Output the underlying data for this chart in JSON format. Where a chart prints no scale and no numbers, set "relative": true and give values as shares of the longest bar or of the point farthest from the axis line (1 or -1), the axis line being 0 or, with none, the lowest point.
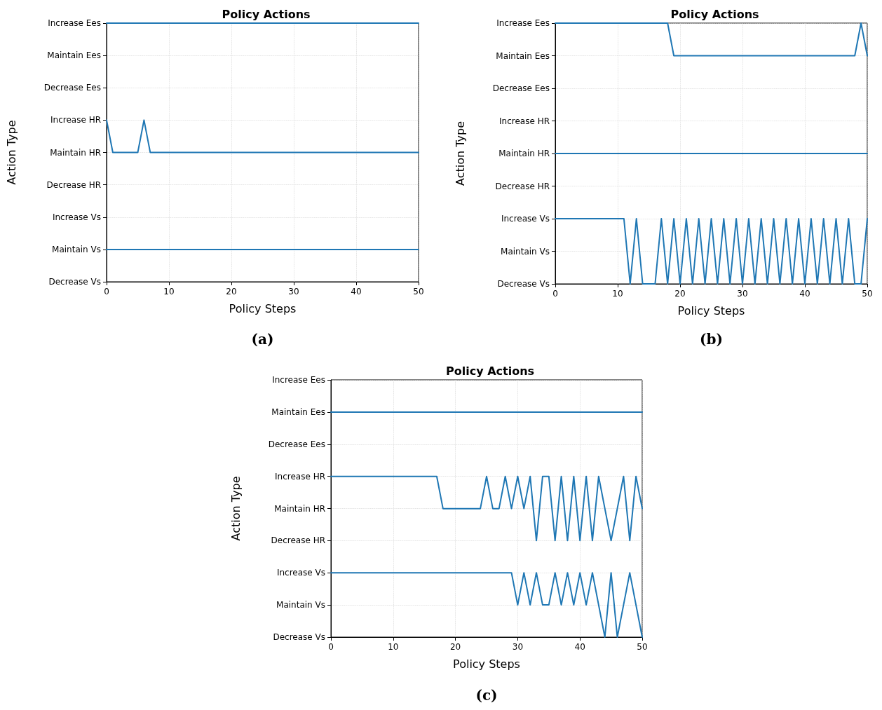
{
  "chart_data": [
    {
      "type": "line",
      "relative": true,
      "title": "Policy Actions",
      "xlabel": "Policy Steps",
      "ylabel": "Action Type",
      "annotations": [
        "(a)"
      ],
      "grid": true,
      "line_style": "solid",
      "marker": "none",
      "xlim": [
        0,
        50
      ],
      "xticks": [
        0,
        10,
        20,
        30,
        40,
        50
      ],
      "y_categories": [
        "Increase Ees",
        "Maintain Ees",
        "Decrease Ees",
        "Increase HR",
        "Maintain HR",
        "Decrease HR",
        "Increase Vs",
        "Maintain Vs",
        "Decrease Vs"
      ],
      "x": [
        0,
        1,
        2,
        3,
        4,
        5,
        6,
        7,
        8,
        9,
        10,
        11,
        12,
        13,
        14,
        15,
        16,
        17,
        18,
        19,
        20,
        21,
        22,
        23,
        24,
        25,
        26,
        27,
        28,
        29,
        30,
        31,
        32,
        33,
        34,
        35,
        36,
        37,
        38,
        39,
        40,
        41,
        42,
        43,
        44,
        45,
        46,
        47,
        48,
        49,
        50
      ],
      "series": [
        {
          "color": "#1f77b4",
          "values": [
            1,
            1,
            1,
            1,
            1,
            1,
            1,
            1,
            1,
            1,
            1,
            1,
            1,
            1,
            1,
            1,
            1,
            1,
            1,
            1,
            1,
            1,
            1,
            1,
            1,
            1,
            1,
            1,
            1,
            1,
            1,
            1,
            1,
            1,
            1,
            1,
            1,
            1,
            1,
            1,
            1,
            1,
            1,
            1,
            1,
            1,
            1,
            1,
            1,
            1,
            1
          ]
        },
        {
          "color": "#1f77b4",
          "values": [
            0.625,
            0.5,
            0.5,
            0.5,
            0.5,
            0.5,
            0.625,
            0.5,
            0.5,
            0.5,
            0.5,
            0.5,
            0.5,
            0.5,
            0.5,
            0.5,
            0.5,
            0.5,
            0.5,
            0.5,
            0.5,
            0.5,
            0.5,
            0.5,
            0.5,
            0.5,
            0.5,
            0.5,
            0.5,
            0.5,
            0.5,
            0.5,
            0.5,
            0.5,
            0.5,
            0.5,
            0.5,
            0.5,
            0.5,
            0.5,
            0.5,
            0.5,
            0.5,
            0.5,
            0.5,
            0.5,
            0.5,
            0.5,
            0.5,
            0.5,
            0.5
          ]
        },
        {
          "color": "#1f77b4",
          "values": [
            0.125,
            0.125,
            0.125,
            0.125,
            0.125,
            0.125,
            0.125,
            0.125,
            0.125,
            0.125,
            0.125,
            0.125,
            0.125,
            0.125,
            0.125,
            0.125,
            0.125,
            0.125,
            0.125,
            0.125,
            0.125,
            0.125,
            0.125,
            0.125,
            0.125,
            0.125,
            0.125,
            0.125,
            0.125,
            0.125,
            0.125,
            0.125,
            0.125,
            0.125,
            0.125,
            0.125,
            0.125,
            0.125,
            0.125,
            0.125,
            0.125,
            0.125,
            0.125,
            0.125,
            0.125,
            0.125,
            0.125,
            0.125,
            0.125,
            0.125,
            0.125
          ]
        }
      ]
    },
    {
      "type": "line",
      "relative": true,
      "title": "Policy Actions",
      "xlabel": "Policy Steps",
      "ylabel": "Action Type",
      "annotations": [
        "(b)"
      ],
      "grid": true,
      "line_style": "solid",
      "marker": "none",
      "xlim": [
        0,
        50
      ],
      "xticks": [
        0,
        10,
        20,
        30,
        40,
        50
      ],
      "y_categories": [
        "Increase Ees",
        "Maintain Ees",
        "Decrease Ees",
        "Increase HR",
        "Maintain HR",
        "Decrease HR",
        "Increase Vs",
        "Maintain Vs",
        "Decrease Vs"
      ],
      "x": [
        0,
        1,
        2,
        3,
        4,
        5,
        6,
        7,
        8,
        9,
        10,
        11,
        12,
        13,
        14,
        15,
        16,
        17,
        18,
        19,
        20,
        21,
        22,
        23,
        24,
        25,
        26,
        27,
        28,
        29,
        30,
        31,
        32,
        33,
        34,
        35,
        36,
        37,
        38,
        39,
        40,
        41,
        42,
        43,
        44,
        45,
        46,
        47,
        48,
        49,
        50
      ],
      "series": [
        {
          "color": "#1f77b4",
          "values": [
            1,
            1,
            1,
            1,
            1,
            1,
            1,
            1,
            1,
            1,
            1,
            1,
            1,
            1,
            1,
            1,
            1,
            1,
            1,
            0.875,
            0.875,
            0.875,
            0.875,
            0.875,
            0.875,
            0.875,
            0.875,
            0.875,
            0.875,
            0.875,
            0.875,
            0.875,
            0.875,
            0.875,
            0.875,
            0.875,
            0.875,
            0.875,
            0.875,
            0.875,
            0.875,
            0.875,
            0.875,
            0.875,
            0.875,
            0.875,
            0.875,
            0.875,
            0.875,
            1,
            0.875
          ]
        },
        {
          "color": "#1f77b4",
          "values": [
            0.5,
            0.5,
            0.5,
            0.5,
            0.5,
            0.5,
            0.5,
            0.5,
            0.5,
            0.5,
            0.5,
            0.5,
            0.5,
            0.5,
            0.5,
            0.5,
            0.5,
            0.5,
            0.5,
            0.5,
            0.5,
            0.5,
            0.5,
            0.5,
            0.5,
            0.5,
            0.5,
            0.5,
            0.5,
            0.5,
            0.5,
            0.5,
            0.5,
            0.5,
            0.5,
            0.5,
            0.5,
            0.5,
            0.5,
            0.5,
            0.5,
            0.5,
            0.5,
            0.5,
            0.5,
            0.5,
            0.5,
            0.5,
            0.5,
            0.5,
            0.5
          ]
        },
        {
          "color": "#1f77b4",
          "values": [
            0.25,
            0.25,
            0.25,
            0.25,
            0.25,
            0.25,
            0.25,
            0.25,
            0.25,
            0.25,
            0.25,
            0.25,
            0,
            0.25,
            0,
            0,
            0,
            0.25,
            0,
            0.25,
            0,
            0.25,
            0,
            0.25,
            0,
            0.25,
            0,
            0.25,
            0,
            0.25,
            0,
            0.25,
            0,
            0.25,
            0,
            0.25,
            0,
            0.25,
            0,
            0.25,
            0,
            0.25,
            0,
            0.25,
            0,
            0.25,
            0,
            0.25,
            0,
            0,
            0.25
          ]
        }
      ]
    },
    {
      "type": "line",
      "relative": true,
      "title": "Policy Actions",
      "xlabel": "Policy Steps",
      "ylabel": "Action Type",
      "annotations": [
        "(c)"
      ],
      "grid": true,
      "line_style": "solid",
      "marker": "none",
      "xlim": [
        0,
        50
      ],
      "xticks": [
        0,
        10,
        20,
        30,
        40,
        50
      ],
      "y_categories": [
        "Increase Ees",
        "Maintain Ees",
        "Decrease Ees",
        "Increase HR",
        "Maintain HR",
        "Decrease HR",
        "Increase Vs",
        "Maintain Vs",
        "Decrease Vs"
      ],
      "x": [
        0,
        1,
        2,
        3,
        4,
        5,
        6,
        7,
        8,
        9,
        10,
        11,
        12,
        13,
        14,
        15,
        16,
        17,
        18,
        19,
        20,
        21,
        22,
        23,
        24,
        25,
        26,
        27,
        28,
        29,
        30,
        31,
        32,
        33,
        34,
        35,
        36,
        37,
        38,
        39,
        40,
        41,
        42,
        43,
        44,
        45,
        46,
        47,
        48,
        49,
        50
      ],
      "series": [
        {
          "color": "#1f77b4",
          "values": [
            1,
            1,
            1,
            1,
            1,
            1,
            1,
            1,
            1,
            1,
            1,
            1,
            1,
            1,
            1,
            1,
            1,
            1,
            1,
            1,
            1,
            1,
            1,
            1,
            1,
            1,
            1,
            1,
            1,
            1,
            1,
            1,
            1,
            1,
            1,
            1,
            1,
            1,
            1,
            1,
            1,
            1,
            1,
            1,
            1,
            1,
            1,
            1,
            1,
            1,
            1
          ]
        },
        {
          "color": "#1f77b4",
          "values": [
            0.714,
            0.714,
            0.714,
            0.714,
            0.714,
            0.714,
            0.714,
            0.714,
            0.714,
            0.714,
            0.714,
            0.714,
            0.714,
            0.714,
            0.714,
            0.714,
            0.714,
            0.714,
            0.571,
            0.571,
            0.571,
            0.571,
            0.571,
            0.571,
            0.571,
            0.714,
            0.571,
            0.571,
            0.714,
            0.571,
            0.714,
            0.571,
            0.714,
            0.429,
            0.714,
            0.714,
            0.429,
            0.714,
            0.429,
            0.714,
            0.429,
            0.714,
            0.429,
            0.714,
            0.571,
            0.429,
            0.571,
            0.714,
            0.429,
            0.714,
            0.571
          ]
        },
        {
          "color": "#1f77b4",
          "values": [
            0.286,
            0.286,
            0.286,
            0.286,
            0.286,
            0.286,
            0.286,
            0.286,
            0.286,
            0.286,
            0.286,
            0.286,
            0.286,
            0.286,
            0.286,
            0.286,
            0.286,
            0.286,
            0.286,
            0.286,
            0.286,
            0.286,
            0.286,
            0.286,
            0.286,
            0.286,
            0.286,
            0.286,
            0.286,
            0.286,
            0.143,
            0.286,
            0.143,
            0.286,
            0.143,
            0.143,
            0.286,
            0.143,
            0.286,
            0.143,
            0.286,
            0.143,
            0.286,
            0.143,
            0,
            0.286,
            0,
            0.143,
            0.286,
            0.143,
            0
          ]
        }
      ]
    }
  ]
}
